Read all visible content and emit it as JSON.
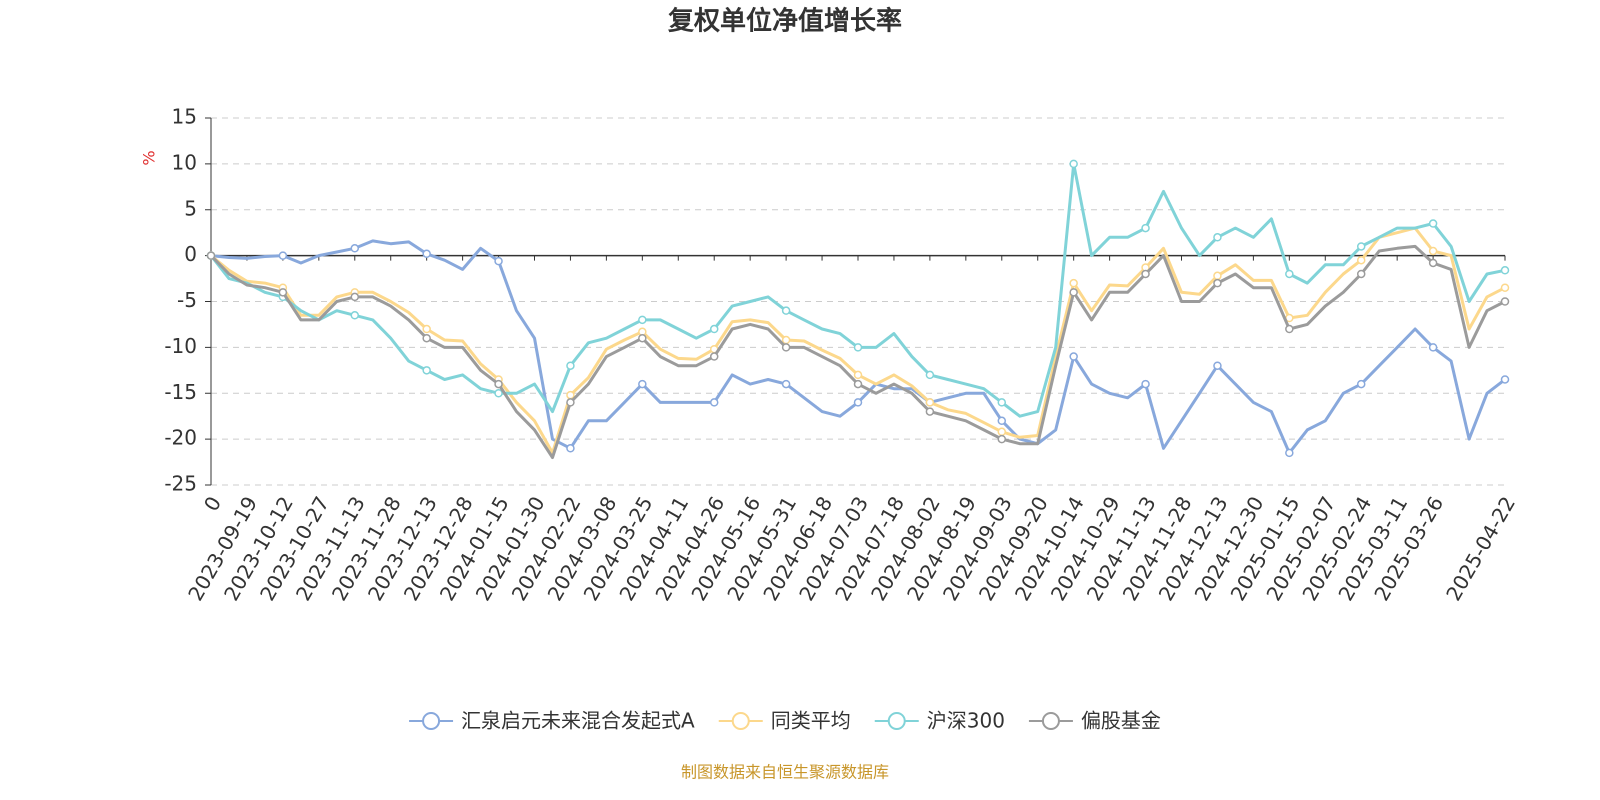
{
  "chart_data": {
    "type": "line",
    "title": "复权单位净值增长率",
    "y_label": "%",
    "source": "制图数据来自恒生聚源数据库",
    "categories": [
      "0",
      null,
      "2023-09-19",
      null,
      "2023-10-12",
      null,
      "2023-10-27",
      null,
      "2023-11-13",
      null,
      "2023-11-28",
      null,
      "2023-12-13",
      null,
      "2023-12-28",
      null,
      "2024-01-15",
      null,
      "2024-01-30",
      null,
      "2024-02-22",
      null,
      "2024-03-08",
      null,
      "2024-03-25",
      null,
      "2024-04-11",
      null,
      "2024-04-26",
      null,
      "2024-05-16",
      null,
      "2024-05-31",
      null,
      "2024-06-18",
      null,
      "2024-07-03",
      null,
      "2024-07-18",
      null,
      "2024-08-02",
      null,
      "2024-08-19",
      null,
      "2024-09-03",
      null,
      "2024-09-20",
      null,
      "2024-10-14",
      null,
      "2024-10-29",
      null,
      "2024-11-13",
      null,
      "2024-11-28",
      null,
      "2024-12-13",
      null,
      "2024-12-30",
      null,
      "2025-01-15",
      null,
      "2025-02-07",
      null,
      "2025-02-24",
      null,
      "2025-03-11",
      null,
      "2025-03-26",
      null,
      null,
      null,
      "2025-04-22"
    ],
    "series": [
      {
        "name": "汇泉启元未来混合发起式A",
        "color": "#88a8dc",
        "values": [
          0,
          -0.2,
          -0.3,
          -0.1,
          0,
          -0.8,
          0,
          0.4,
          0.8,
          1.6,
          1.3,
          1.5,
          0.2,
          -0.5,
          -1.5,
          0.8,
          -0.6,
          -6,
          -9,
          -20,
          -21,
          -18,
          -18,
          -16,
          -14,
          -16,
          -16,
          -16,
          -16,
          -13,
          -14,
          -13.5,
          -14,
          -15.5,
          -17,
          -17.5,
          -16,
          -14,
          -14.5,
          -14.5,
          -16,
          -15.5,
          -15,
          -15,
          -18,
          -20,
          -20.5,
          -19,
          -11,
          -14,
          -15,
          -15.5,
          -14,
          -21,
          -18,
          -15,
          -12,
          -14,
          -16,
          -17,
          -21.5,
          -19,
          -18,
          -15,
          -14,
          -12,
          -10,
          -8,
          -10,
          -11.5,
          -20,
          -15,
          -13.5
        ]
      },
      {
        "name": "同类平均",
        "color": "#fcd88c",
        "values": [
          0,
          -1.6,
          -2.8,
          -3,
          -3.5,
          -6.5,
          -6.5,
          -4.5,
          -4,
          -4,
          -5,
          -6.2,
          -8,
          -9.2,
          -9.3,
          -11.8,
          -13.5,
          -16,
          -18,
          -21.5,
          -15.2,
          -13.3,
          -10.2,
          -9.2,
          -8.3,
          -10.2,
          -11.2,
          -11.3,
          -10.2,
          -7.2,
          -7,
          -7.3,
          -9.2,
          -9.3,
          -10.3,
          -11.2,
          -13,
          -14,
          -13,
          -14.2,
          -16,
          -16.8,
          -17.2,
          -18.2,
          -19.2,
          -19.8,
          -19.6,
          -11,
          -3,
          -6,
          -3.2,
          -3.3,
          -1.3,
          0.8,
          -4,
          -4.2,
          -2.2,
          -1,
          -2.7,
          -2.7,
          -6.8,
          -6.5,
          -4,
          -2,
          -0.5,
          2,
          2.5,
          3,
          0.5,
          0,
          -8,
          -4.5,
          -3.5
        ]
      },
      {
        "name": "沪深300",
        "color": "#80d3d8",
        "values": [
          0,
          -2.5,
          -3,
          -4,
          -4.5,
          -6,
          -7,
          -6,
          -6.5,
          -7,
          -9,
          -11.5,
          -12.5,
          -13.5,
          -13,
          -14.5,
          -15,
          -15,
          -14,
          -17,
          -12,
          -9.5,
          -9,
          -8,
          -7,
          -7,
          -8,
          -9,
          -8,
          -5.5,
          -5,
          -4.5,
          -6,
          -7,
          -8,
          -8.5,
          -10,
          -10,
          -8.5,
          -11,
          -13,
          -13.5,
          -14,
          -14.5,
          -16,
          -17.5,
          -17,
          -10,
          10,
          0,
          2,
          2,
          3,
          7,
          3,
          0,
          2,
          3,
          2,
          4,
          -2,
          -3,
          -1,
          -1,
          1,
          2,
          3,
          3,
          3.5,
          1,
          -5,
          -2,
          -1.6
        ]
      },
      {
        "name": "偏股基金",
        "color": "#9b9b9b",
        "values": [
          0,
          -2,
          -3.2,
          -3.5,
          -4,
          -7,
          -7,
          -5,
          -4.5,
          -4.5,
          -5.5,
          -7,
          -9,
          -10,
          -10,
          -12.5,
          -14,
          -17,
          -19,
          -22,
          -16,
          -14,
          -11,
          -10,
          -9,
          -11,
          -12,
          -12,
          -11,
          -8,
          -7.5,
          -8,
          -10,
          -10,
          -11,
          -12,
          -14,
          -15,
          -14,
          -15,
          -17,
          -17.5,
          -18,
          -19,
          -20,
          -20.5,
          -20.5,
          -12,
          -4,
          -7,
          -4,
          -4,
          -2,
          0,
          -5,
          -5,
          -3,
          -2,
          -3.5,
          -3.5,
          -8,
          -7.5,
          -5.5,
          -4,
          -2,
          0.5,
          0.8,
          1,
          -0.8,
          -1.5,
          -10,
          -6,
          -5
        ]
      }
    ],
    "ylim": [
      -25,
      15
    ],
    "yticks": [
      -25,
      -20,
      -15,
      -10,
      -5,
      0,
      5,
      10,
      15
    ],
    "grid": true,
    "legend": "bottom"
  }
}
